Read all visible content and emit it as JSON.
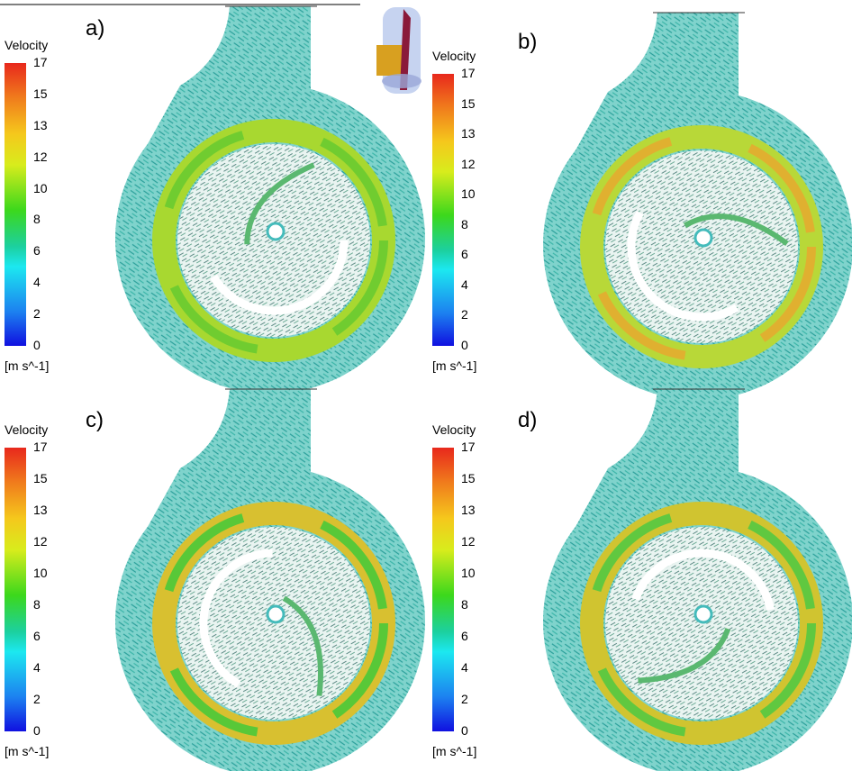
{
  "panels": [
    {
      "label": "a)",
      "legend": {
        "title": "Velocity",
        "ticks": [
          17,
          15,
          13,
          12,
          10,
          8,
          6,
          4,
          2,
          0
        ],
        "unit": "[m s^-1]"
      }
    },
    {
      "label": "b)",
      "legend": {
        "title": "Velocity",
        "ticks": [
          17,
          15,
          13,
          12,
          10,
          8,
          6,
          4,
          2,
          0
        ],
        "unit": "[m s^-1]"
      }
    },
    {
      "label": "c)",
      "legend": {
        "title": "Velocity",
        "ticks": [
          17,
          15,
          13,
          12,
          10,
          8,
          6,
          4,
          2,
          0
        ],
        "unit": "[m s^-1]"
      }
    },
    {
      "label": "d)",
      "legend": {
        "title": "Velocity",
        "ticks": [
          17,
          15,
          13,
          12,
          10,
          8,
          6,
          4,
          2,
          0
        ],
        "unit": "[m s^-1]"
      }
    }
  ]
}
